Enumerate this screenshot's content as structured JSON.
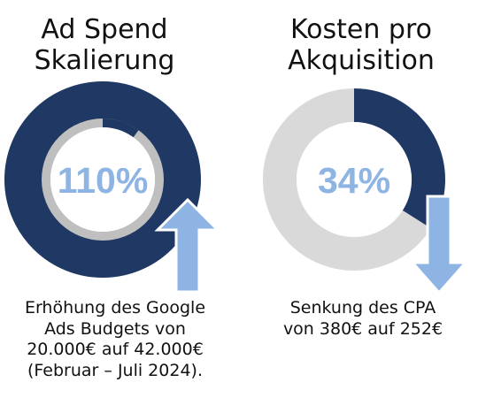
{
  "colors": {
    "navy": "#1f3864",
    "light_gray": "#d9d9d9",
    "mid_gray": "#bfbfbf",
    "accent_blue": "#8eb4e3"
  },
  "chart_data": [
    {
      "type": "pie",
      "title_lines": [
        "Ad Spend",
        "Skalierung"
      ],
      "center_label": "110%",
      "percent_value": 110,
      "outer_ring": {
        "fraction": 1.0,
        "color": "navy"
      },
      "inner_ring": {
        "filled_fraction": 0.1,
        "filled_color": "navy",
        "remainder_color": "mid_gray"
      },
      "direction": "up",
      "arrow_icon": "arrow-up-icon",
      "caption_lines": [
        "Erhöhung des Google",
        "Ads Budgets von",
        "20.000€ auf 42.000€",
        "(Februar – Juli 2024)."
      ],
      "values": {
        "from": 20000,
        "to": 42000,
        "unit": "€"
      }
    },
    {
      "type": "pie",
      "title_lines": [
        "Kosten pro",
        "Akquisition"
      ],
      "center_label": "34%",
      "percent_value": 34,
      "outer_ring": {
        "filled_fraction": 0.34,
        "filled_color": "navy",
        "remainder_color": "light_gray"
      },
      "direction": "down",
      "arrow_icon": "arrow-down-icon",
      "caption_lines": [
        "Senkung des CPA",
        "von 380€ auf 252€"
      ],
      "values": {
        "from": 380,
        "to": 252,
        "unit": "€"
      }
    }
  ]
}
